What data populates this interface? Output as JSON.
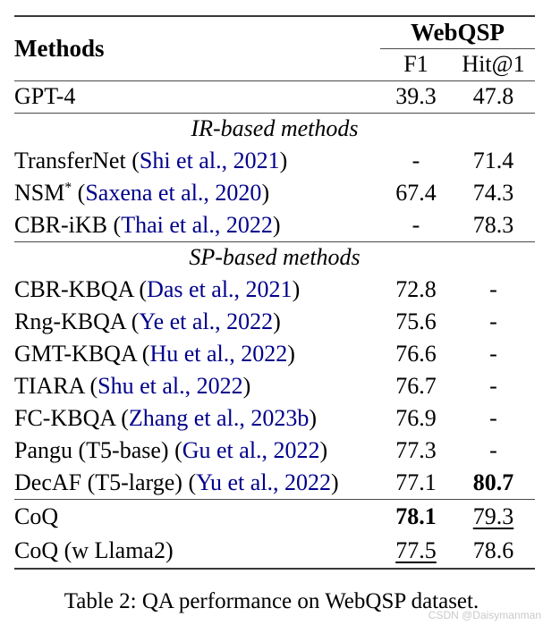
{
  "colors": {
    "citation": "#00008B",
    "watermark": "#c9c9c9"
  },
  "table": {
    "header": {
      "methods": "Methods",
      "group": "WebQSP",
      "subcols": [
        "F1",
        "Hit@1"
      ]
    },
    "groups": [
      {
        "label": null,
        "rows": [
          {
            "name": "GPT-4",
            "cite": null,
            "f1": {
              "text": "39.3"
            },
            "hit": {
              "text": "47.8"
            }
          }
        ]
      },
      {
        "label": "IR-based methods",
        "rows": [
          {
            "name": "TransferNet",
            "cite": "Shi et al., 2021",
            "f1": {
              "text": "-"
            },
            "hit": {
              "text": "71.4"
            }
          },
          {
            "name": "NSM",
            "sup": "*",
            "cite": "Saxena et al., 2020",
            "f1": {
              "text": "67.4"
            },
            "hit": {
              "text": "74.3"
            }
          },
          {
            "name": "CBR-iKB",
            "cite": "Thai et al., 2022",
            "f1": {
              "text": "-"
            },
            "hit": {
              "text": "78.3"
            }
          }
        ]
      },
      {
        "label": "SP-based methods",
        "rows": [
          {
            "name": "CBR-KBQA",
            "cite": "Das et al., 2021",
            "f1": {
              "text": "72.8"
            },
            "hit": {
              "text": "-"
            }
          },
          {
            "name": "Rng-KBQA",
            "cite": "Ye et al., 2022",
            "f1": {
              "text": "75.6"
            },
            "hit": {
              "text": "-"
            }
          },
          {
            "name": "GMT-KBQA",
            "cite": "Hu et al., 2022",
            "f1": {
              "text": "76.6"
            },
            "hit": {
              "text": "-"
            }
          },
          {
            "name": "TIARA",
            "cite": "Shu et al., 2022",
            "f1": {
              "text": "76.7"
            },
            "hit": {
              "text": "-"
            }
          },
          {
            "name": "FC-KBQA",
            "cite": "Zhang et al., 2023b",
            "f1": {
              "text": "76.9"
            },
            "hit": {
              "text": "-"
            }
          },
          {
            "name": "Pangu (T5-base)",
            "cite": "Gu et al., 2022",
            "f1": {
              "text": "77.3"
            },
            "hit": {
              "text": "-"
            }
          },
          {
            "name": "DecAF (T5-large)",
            "cite": "Yu et al., 2022",
            "f1": {
              "text": "77.1"
            },
            "hit": {
              "text": "80.7",
              "bold": true
            }
          }
        ]
      },
      {
        "label": null,
        "tall": true,
        "rows": [
          {
            "name": "CoQ",
            "cite": null,
            "f1": {
              "text": "78.1",
              "bold": true
            },
            "hit": {
              "text": "79.3",
              "underline": true
            }
          },
          {
            "name": "CoQ (w Llama2)",
            "cite": null,
            "f1": {
              "text": "77.5",
              "underline": true
            },
            "hit": {
              "text": "78.6"
            }
          }
        ]
      }
    ],
    "caption": "Table 2: QA performance on WebQSP dataset."
  },
  "watermark": "CSDN @Daisymanman"
}
